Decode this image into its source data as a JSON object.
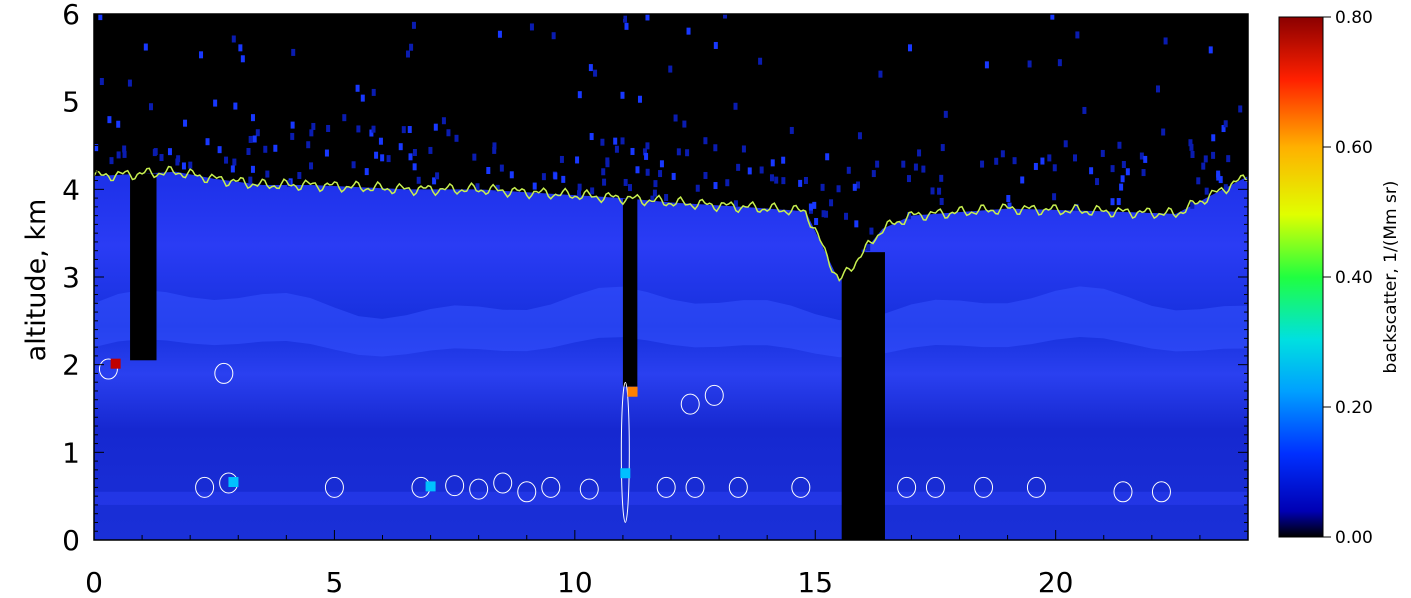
{
  "chart_data": {
    "type": "heatmap",
    "title": "",
    "xlabel": "",
    "ylabel": "altitude, km",
    "xlim": [
      0,
      24
    ],
    "ylim": [
      0,
      6
    ],
    "x_ticks": [
      0,
      5,
      10,
      15,
      20
    ],
    "y_ticks": [
      0,
      1,
      2,
      3,
      4,
      5,
      6
    ],
    "colorbar": {
      "label": "backscatter, 1/(Mm sr)",
      "range": [
        0.0,
        0.8
      ],
      "ticks": [
        "0.00",
        "0.20",
        "0.40",
        "0.60",
        "0.80"
      ],
      "colormap": [
        "#000000",
        "#0000b4",
        "#0030ff",
        "#00a0ff",
        "#00e0e0",
        "#20ff40",
        "#e0ff00",
        "#ffb000",
        "#ff2000",
        "#8b0000"
      ]
    },
    "data_gaps_hours": [
      [
        0.75,
        1.3
      ],
      [
        11.0,
        11.3
      ],
      [
        15.55,
        16.45
      ]
    ],
    "layer_top_km": [
      [
        0,
        4.15
      ],
      [
        1.7,
        4.2
      ],
      [
        2.5,
        4.12
      ],
      [
        3.5,
        4.05
      ],
      [
        4.5,
        4.05
      ],
      [
        6.5,
        4.0
      ],
      [
        8.0,
        4.0
      ],
      [
        9.5,
        3.95
      ],
      [
        11.0,
        3.9
      ],
      [
        12.0,
        3.85
      ],
      [
        13.5,
        3.8
      ],
      [
        14.8,
        3.75
      ],
      [
        15.5,
        2.95
      ],
      [
        16.4,
        3.55
      ],
      [
        17.0,
        3.7
      ],
      [
        19.0,
        3.78
      ],
      [
        21.0,
        3.75
      ],
      [
        22.5,
        3.72
      ],
      [
        24.0,
        4.15
      ]
    ],
    "elevated_layer_km": [
      2.2,
      2.7
    ],
    "contour_level": 0.2,
    "high_backscatter_spots": [
      {
        "x": 0.45,
        "y": 2.0,
        "value": 0.8
      },
      {
        "x": 2.9,
        "y": 0.65,
        "value": 0.25
      },
      {
        "x": 11.2,
        "y": 1.68,
        "value": 0.55
      },
      {
        "x": 11.05,
        "y": 0.75,
        "value": 0.3
      },
      {
        "x": 7.0,
        "y": 0.6,
        "value": 0.22
      }
    ]
  }
}
